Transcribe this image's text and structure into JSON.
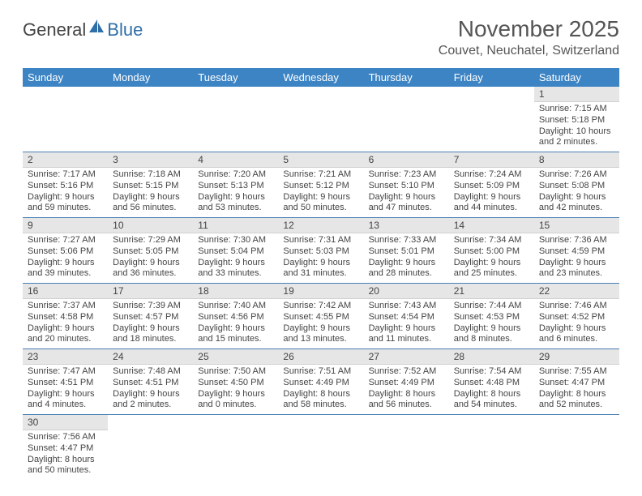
{
  "logo": {
    "part1": "General",
    "part2": "Blue"
  },
  "title": "November 2025",
  "location": "Couvet, Neuchatel, Switzerland",
  "colors": {
    "header_bg": "#3d84c4",
    "header_text": "#ffffff",
    "daynum_bg": "#e6e6e6",
    "cell_border": "#4a7fb5",
    "text": "#444444",
    "logo_blue": "#2f6fa8"
  },
  "weekdays": [
    "Sunday",
    "Monday",
    "Tuesday",
    "Wednesday",
    "Thursday",
    "Friday",
    "Saturday"
  ],
  "weeks": [
    [
      null,
      null,
      null,
      null,
      null,
      null,
      {
        "n": "1",
        "sr": "7:15 AM",
        "ss": "5:18 PM",
        "d1": "10 hours",
        "d2": "and 2 minutes."
      }
    ],
    [
      {
        "n": "2",
        "sr": "7:17 AM",
        "ss": "5:16 PM",
        "d1": "9 hours",
        "d2": "and 59 minutes."
      },
      {
        "n": "3",
        "sr": "7:18 AM",
        "ss": "5:15 PM",
        "d1": "9 hours",
        "d2": "and 56 minutes."
      },
      {
        "n": "4",
        "sr": "7:20 AM",
        "ss": "5:13 PM",
        "d1": "9 hours",
        "d2": "and 53 minutes."
      },
      {
        "n": "5",
        "sr": "7:21 AM",
        "ss": "5:12 PM",
        "d1": "9 hours",
        "d2": "and 50 minutes."
      },
      {
        "n": "6",
        "sr": "7:23 AM",
        "ss": "5:10 PM",
        "d1": "9 hours",
        "d2": "and 47 minutes."
      },
      {
        "n": "7",
        "sr": "7:24 AM",
        "ss": "5:09 PM",
        "d1": "9 hours",
        "d2": "and 44 minutes."
      },
      {
        "n": "8",
        "sr": "7:26 AM",
        "ss": "5:08 PM",
        "d1": "9 hours",
        "d2": "and 42 minutes."
      }
    ],
    [
      {
        "n": "9",
        "sr": "7:27 AM",
        "ss": "5:06 PM",
        "d1": "9 hours",
        "d2": "and 39 minutes."
      },
      {
        "n": "10",
        "sr": "7:29 AM",
        "ss": "5:05 PM",
        "d1": "9 hours",
        "d2": "and 36 minutes."
      },
      {
        "n": "11",
        "sr": "7:30 AM",
        "ss": "5:04 PM",
        "d1": "9 hours",
        "d2": "and 33 minutes."
      },
      {
        "n": "12",
        "sr": "7:31 AM",
        "ss": "5:03 PM",
        "d1": "9 hours",
        "d2": "and 31 minutes."
      },
      {
        "n": "13",
        "sr": "7:33 AM",
        "ss": "5:01 PM",
        "d1": "9 hours",
        "d2": "and 28 minutes."
      },
      {
        "n": "14",
        "sr": "7:34 AM",
        "ss": "5:00 PM",
        "d1": "9 hours",
        "d2": "and 25 minutes."
      },
      {
        "n": "15",
        "sr": "7:36 AM",
        "ss": "4:59 PM",
        "d1": "9 hours",
        "d2": "and 23 minutes."
      }
    ],
    [
      {
        "n": "16",
        "sr": "7:37 AM",
        "ss": "4:58 PM",
        "d1": "9 hours",
        "d2": "and 20 minutes."
      },
      {
        "n": "17",
        "sr": "7:39 AM",
        "ss": "4:57 PM",
        "d1": "9 hours",
        "d2": "and 18 minutes."
      },
      {
        "n": "18",
        "sr": "7:40 AM",
        "ss": "4:56 PM",
        "d1": "9 hours",
        "d2": "and 15 minutes."
      },
      {
        "n": "19",
        "sr": "7:42 AM",
        "ss": "4:55 PM",
        "d1": "9 hours",
        "d2": "and 13 minutes."
      },
      {
        "n": "20",
        "sr": "7:43 AM",
        "ss": "4:54 PM",
        "d1": "9 hours",
        "d2": "and 11 minutes."
      },
      {
        "n": "21",
        "sr": "7:44 AM",
        "ss": "4:53 PM",
        "d1": "9 hours",
        "d2": "and 8 minutes."
      },
      {
        "n": "22",
        "sr": "7:46 AM",
        "ss": "4:52 PM",
        "d1": "9 hours",
        "d2": "and 6 minutes."
      }
    ],
    [
      {
        "n": "23",
        "sr": "7:47 AM",
        "ss": "4:51 PM",
        "d1": "9 hours",
        "d2": "and 4 minutes."
      },
      {
        "n": "24",
        "sr": "7:48 AM",
        "ss": "4:51 PM",
        "d1": "9 hours",
        "d2": "and 2 minutes."
      },
      {
        "n": "25",
        "sr": "7:50 AM",
        "ss": "4:50 PM",
        "d1": "9 hours",
        "d2": "and 0 minutes."
      },
      {
        "n": "26",
        "sr": "7:51 AM",
        "ss": "4:49 PM",
        "d1": "8 hours",
        "d2": "and 58 minutes."
      },
      {
        "n": "27",
        "sr": "7:52 AM",
        "ss": "4:49 PM",
        "d1": "8 hours",
        "d2": "and 56 minutes."
      },
      {
        "n": "28",
        "sr": "7:54 AM",
        "ss": "4:48 PM",
        "d1": "8 hours",
        "d2": "and 54 minutes."
      },
      {
        "n": "29",
        "sr": "7:55 AM",
        "ss": "4:47 PM",
        "d1": "8 hours",
        "d2": "and 52 minutes."
      }
    ],
    [
      {
        "n": "30",
        "sr": "7:56 AM",
        "ss": "4:47 PM",
        "d1": "8 hours",
        "d2": "and 50 minutes."
      },
      null,
      null,
      null,
      null,
      null,
      null
    ]
  ],
  "labels": {
    "sunrise": "Sunrise:",
    "sunset": "Sunset:",
    "daylight": "Daylight:"
  }
}
